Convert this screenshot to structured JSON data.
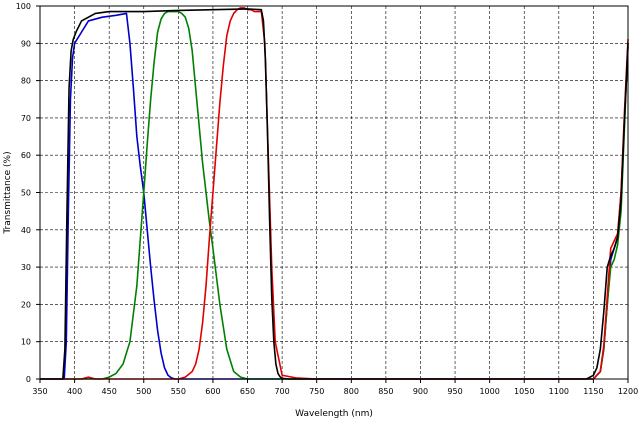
{
  "chart_data": {
    "type": "line",
    "title": "",
    "xlabel": "Wavelength (nm)",
    "ylabel": "Transmittance (%)",
    "xlim": [
      350,
      1200
    ],
    "ylim": [
      0,
      100
    ],
    "x_ticks": [
      350,
      400,
      450,
      500,
      550,
      600,
      650,
      700,
      750,
      800,
      850,
      900,
      950,
      1000,
      1050,
      1100,
      1150,
      1200
    ],
    "y_ticks": [
      0,
      10,
      20,
      30,
      40,
      50,
      60,
      70,
      80,
      90,
      100
    ],
    "grid": true,
    "legend": "none",
    "series": [
      {
        "color": "#0000c8",
        "x": [
          350,
          385,
          388,
          391,
          394,
          397,
          400,
          410,
          420,
          440,
          460,
          475,
          480,
          485,
          490,
          495,
          500,
          505,
          510,
          515,
          520,
          525,
          530,
          535,
          540,
          545,
          550,
          555,
          560,
          570,
          580,
          600,
          650,
          700,
          800,
          900,
          1000,
          1100,
          1150,
          1160,
          1165,
          1170,
          1175,
          1180,
          1185,
          1190,
          1195,
          1200
        ],
        "y": [
          0,
          0,
          10,
          45,
          75,
          86,
          90,
          93,
          96,
          97,
          97.5,
          98,
          90,
          78,
          65,
          57,
          50,
          40,
          30,
          21,
          13,
          7,
          3,
          1,
          0.3,
          0,
          0,
          0,
          0,
          0,
          0,
          0,
          0,
          0,
          0,
          0,
          0,
          0,
          0,
          2,
          8,
          20,
          32,
          35,
          38,
          50,
          70,
          89
        ]
      },
      {
        "color": "#008000",
        "x": [
          350,
          440,
          450,
          460,
          470,
          480,
          490,
          500,
          505,
          510,
          515,
          520,
          525,
          530,
          535,
          540,
          545,
          550,
          555,
          560,
          565,
          570,
          575,
          580,
          585,
          590,
          595,
          600,
          610,
          620,
          630,
          640,
          650,
          700,
          800,
          900,
          1000,
          1100,
          1150,
          1160,
          1165,
          1170,
          1175,
          1180,
          1185,
          1190,
          1195,
          1200
        ],
        "y": [
          0,
          0,
          0.5,
          1.5,
          4,
          10,
          25,
          50,
          63,
          75,
          85,
          93,
          96.5,
          98,
          98.5,
          98.5,
          98.5,
          98.5,
          98,
          97,
          94,
          88,
          78,
          68,
          58,
          50,
          42,
          35,
          20,
          8,
          2,
          0.5,
          0,
          0,
          0,
          0,
          0,
          0,
          0,
          2,
          8,
          20,
          30,
          32,
          36,
          45,
          68,
          90
        ]
      },
      {
        "color": "#e00000",
        "x": [
          350,
          410,
          420,
          430,
          440,
          500,
          550,
          560,
          570,
          575,
          580,
          585,
          590,
          595,
          600,
          605,
          610,
          615,
          620,
          625,
          630,
          635,
          640,
          645,
          650,
          655,
          660,
          670,
          675,
          680,
          685,
          690,
          700,
          720,
          750,
          800,
          900,
          1000,
          1100,
          1150,
          1160,
          1165,
          1170,
          1175,
          1180,
          1185,
          1190,
          1195,
          1200
        ],
        "y": [
          0,
          0,
          0.5,
          0,
          0,
          0,
          0,
          0.5,
          2,
          4,
          8,
          15,
          25,
          38,
          50,
          62,
          74,
          84,
          92,
          96,
          98,
          99,
          99.5,
          99.5,
          99,
          99,
          98.5,
          98.5,
          90,
          60,
          30,
          10,
          1,
          0.3,
          0,
          0,
          0,
          0,
          0,
          0,
          2,
          9,
          22,
          35,
          37,
          39,
          50,
          72,
          91
        ]
      },
      {
        "color": "#000000",
        "x": [
          350,
          383,
          386,
          389,
          392,
          395,
          398,
          402,
          410,
          420,
          430,
          450,
          500,
          550,
          600,
          650,
          670,
          673,
          676,
          679,
          682,
          685,
          688,
          691,
          694,
          697,
          700,
          710,
          720,
          750,
          800,
          900,
          1000,
          1100,
          1140,
          1150,
          1155,
          1160,
          1165,
          1170,
          1175,
          1180,
          1185,
          1190,
          1195,
          1200
        ],
        "y": [
          0,
          0,
          8,
          45,
          78,
          88,
          91,
          93,
          96,
          97,
          98,
          98.5,
          98.5,
          98.8,
          99,
          99.2,
          99,
          96,
          85,
          65,
          42,
          22,
          10,
          4,
          1.5,
          0.6,
          0.2,
          0,
          0,
          0,
          0,
          0,
          0,
          0,
          0,
          1,
          3,
          8,
          18,
          30,
          33,
          35,
          38,
          48,
          70,
          90
        ]
      }
    ]
  }
}
